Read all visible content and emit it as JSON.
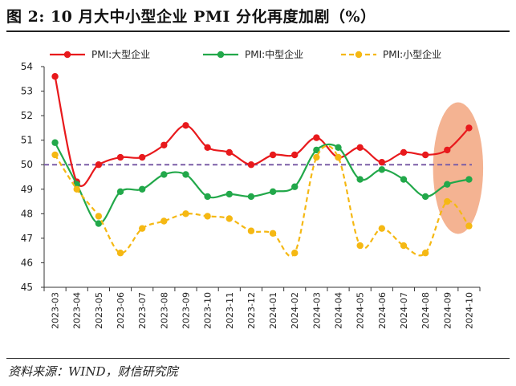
{
  "header": {
    "title": "图 2:  10 月大中小型企业 PMI 分化再度加剧（%）"
  },
  "footer": {
    "source": "资料来源：WIND，财信研究院"
  },
  "colors": {
    "large": "#E8191C",
    "medium": "#22A84A",
    "small": "#F5B813",
    "reference": "#7B5EA7",
    "highlight": "#F2A27A"
  },
  "chart_data": {
    "type": "line",
    "title": "10 月大中小型企业 PMI 分化再度加剧（%）",
    "xlabel": "",
    "ylabel": "",
    "ylim": [
      45,
      54
    ],
    "yticks": [
      45,
      46,
      47,
      48,
      49,
      50,
      51,
      52,
      53,
      54
    ],
    "grid": false,
    "legend_position": "top",
    "reference_line": {
      "y": 50,
      "style": "dashed"
    },
    "x": [
      "2023-03",
      "2023-04",
      "2023-05",
      "2023-06",
      "2023-07",
      "2023-08",
      "2023-09",
      "2023-10",
      "2023-11",
      "2023-12",
      "2024-01",
      "2024-02",
      "2024-03",
      "2024-04",
      "2024-05",
      "2024-06",
      "2024-07",
      "2024-08",
      "2024-09",
      "2024-10"
    ],
    "series": [
      {
        "name": "PMI:大型企业",
        "key": "large",
        "style": "solid",
        "values": [
          53.6,
          49.3,
          50.0,
          50.3,
          50.3,
          50.8,
          51.6,
          50.7,
          50.5,
          50.0,
          50.4,
          50.4,
          51.1,
          50.3,
          50.7,
          50.1,
          50.5,
          50.4,
          50.6,
          51.5
        ]
      },
      {
        "name": "PMI:中型企业",
        "key": "medium",
        "style": "solid",
        "values": [
          50.9,
          49.2,
          47.6,
          48.9,
          49.0,
          49.6,
          49.6,
          48.7,
          48.8,
          48.7,
          48.9,
          49.1,
          50.6,
          50.7,
          49.4,
          49.8,
          49.4,
          48.7,
          49.2,
          49.4
        ]
      },
      {
        "name": "PMI:小型企业",
        "key": "small",
        "style": "dashed",
        "values": [
          50.4,
          49.0,
          47.9,
          46.4,
          47.4,
          47.7,
          48.0,
          47.9,
          47.8,
          47.3,
          47.2,
          46.4,
          50.3,
          50.3,
          46.7,
          47.4,
          46.7,
          46.4,
          48.5,
          47.5
        ]
      }
    ],
    "annotations": [
      {
        "type": "ellipse-highlight",
        "covers_categories": [
          "2024-09",
          "2024-10"
        ]
      }
    ]
  }
}
